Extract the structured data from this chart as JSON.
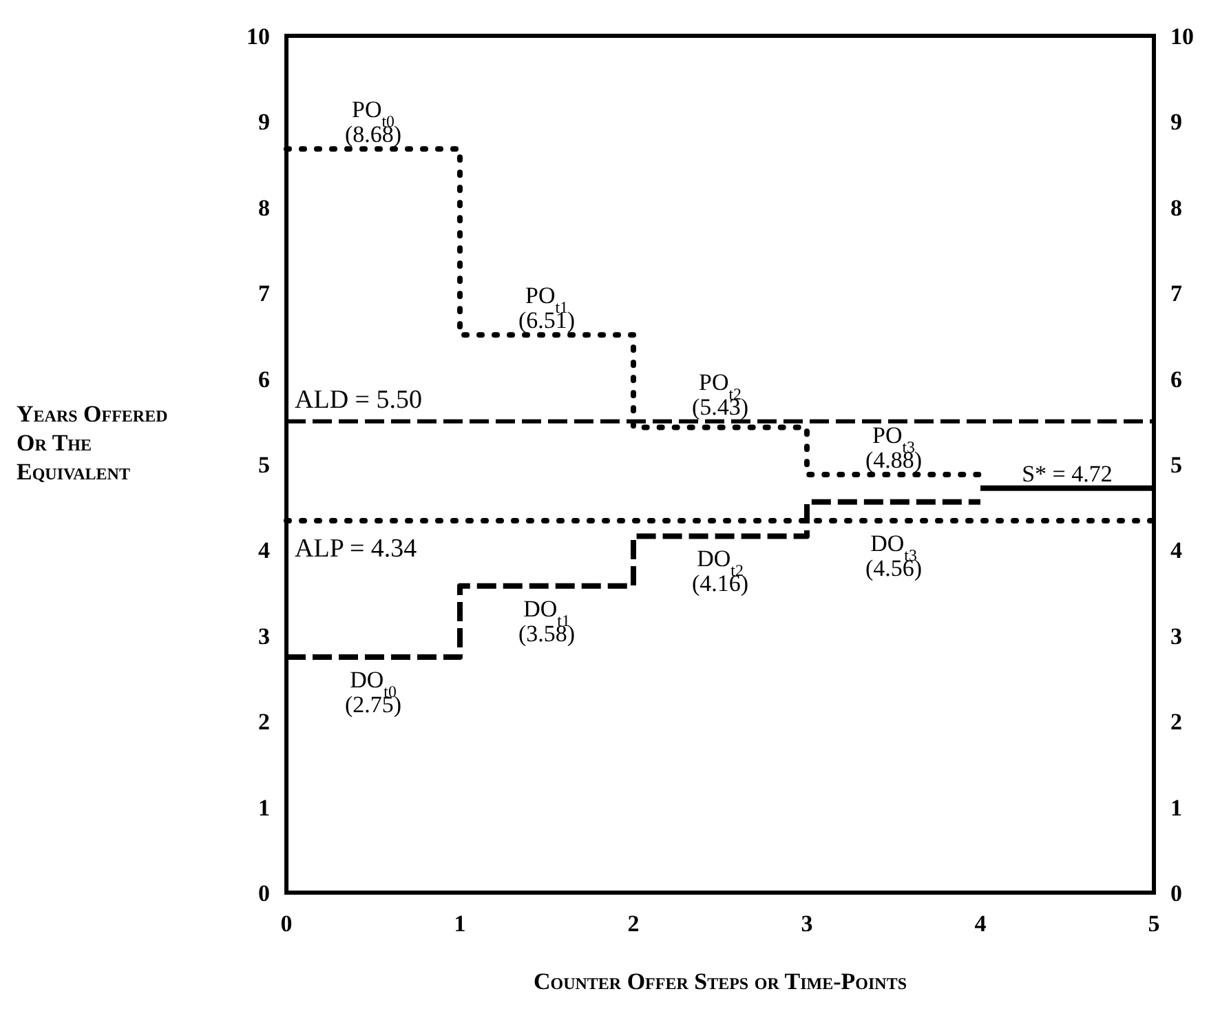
{
  "chart_data": {
    "type": "step",
    "xlabel": "Counter Offer Steps or Time-Points",
    "ylabel": "Years Offered Or The Equivalent",
    "xlim": [
      0,
      5
    ],
    "xticks": [
      0,
      1,
      2,
      3,
      4,
      5
    ],
    "ylim": [
      0,
      10
    ],
    "yticks": [
      0,
      1,
      2,
      3,
      4,
      5,
      6,
      7,
      8,
      9,
      10
    ],
    "y2lim": [
      0,
      10
    ],
    "y2ticks": [
      0,
      1,
      2,
      3,
      4,
      5,
      6,
      7,
      8,
      9,
      10
    ],
    "grid": false,
    "series": [
      {
        "color": "#000000",
        "line_style": "dotted",
        "x": [
          0,
          1,
          2,
          3,
          4
        ],
        "values": [
          8.68,
          6.51,
          5.43,
          4.88,
          4.88
        ]
      },
      {
        "color": "#000000",
        "line_style": "dashed",
        "x": [
          0,
          1,
          2,
          3,
          4
        ],
        "values": [
          2.75,
          3.58,
          4.16,
          4.56,
          4.56
        ]
      },
      {
        "color": "#000000",
        "line_style": "solid",
        "x": [
          4,
          5
        ],
        "values": [
          4.72,
          4.72
        ]
      }
    ],
    "ref_lines": [
      {
        "axis": "y",
        "value": 5.5,
        "label": "ALD = 5.50",
        "color": "#000000",
        "line_style": "dashed"
      },
      {
        "axis": "y",
        "value": 4.34,
        "label": "ALP = 4.34",
        "color": "#000000",
        "line_style": "dotted"
      }
    ],
    "annotations": [
      {
        "text": "PO$_{t0}$\n(8.68)",
        "x": 0.5,
        "y": 8.68
      },
      {
        "text": "PO$_{t1}$\n(6.51)",
        "x": 1.5,
        "y": 6.51
      },
      {
        "text": "PO$_{t2}$\n(5.43)",
        "x": 2.5,
        "y": 5.43
      },
      {
        "text": "PO$_{t3}$\n(4.88)",
        "x": 3.5,
        "y": 4.88
      },
      {
        "text": "DO$_{t0}$\n(2.75)",
        "x": 0.5,
        "y": 2.75
      },
      {
        "text": "DO$_{t1}$\n(3.58)",
        "x": 1.5,
        "y": 3.58
      },
      {
        "text": "DO$_{t2}$\n(4.16)",
        "x": 2.5,
        "y": 4.16
      },
      {
        "text": "DO$_{t3}$\n(4.56)",
        "x": 3.5,
        "y": 4.56
      },
      {
        "text": "S* = 4.72",
        "x": 4.5,
        "y": 4.72
      }
    ]
  }
}
